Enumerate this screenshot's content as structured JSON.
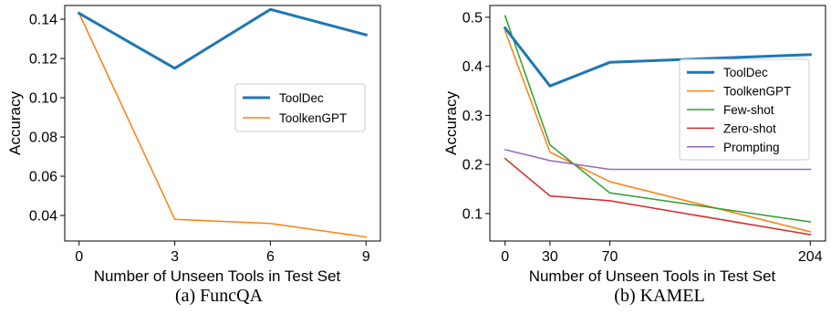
{
  "chart_data": [
    {
      "type": "line",
      "caption": "(a) FuncQA",
      "xlabel": "Number of Unseen Tools in Test Set",
      "ylabel": "Accuracy",
      "x": [
        0,
        3,
        6,
        9
      ],
      "xlim": [
        -0.45,
        9.45
      ],
      "ylim": [
        0.027,
        0.147
      ],
      "xticks": [
        0,
        3,
        6,
        9
      ],
      "yticks": [
        0.04,
        0.06,
        0.08,
        0.1,
        0.12,
        0.14
      ],
      "ytick_labels": [
        "0.04",
        "0.06",
        "0.08",
        "0.10",
        "0.12",
        "0.14"
      ],
      "grid": false,
      "legend_position": "center-right",
      "series": [
        {
          "name": "ToolDec",
          "color": "#1f77b4",
          "width": 3,
          "values": [
            0.143,
            0.115,
            0.145,
            0.132
          ]
        },
        {
          "name": "ToolkenGPT",
          "color": "#ff7f0e",
          "width": 1.5,
          "values": [
            0.143,
            0.038,
            0.036,
            0.029
          ]
        }
      ]
    },
    {
      "type": "line",
      "caption": "(b) KAMEL",
      "xlabel": "Number of Unseen Tools in Test Set",
      "ylabel": "Accuracy",
      "x": [
        0,
        30,
        70,
        204
      ],
      "xlim": [
        -10.2,
        214.2
      ],
      "ylim": [
        0.044,
        0.524
      ],
      "xticks": [
        0,
        30,
        70,
        204
      ],
      "yticks": [
        0.1,
        0.2,
        0.3,
        0.4,
        0.5
      ],
      "ytick_labels": [
        "0.1",
        "0.2",
        "0.3",
        "0.4",
        "0.5"
      ],
      "grid": false,
      "legend_position": "center-right",
      "series": [
        {
          "name": "ToolDec",
          "color": "#1f77b4",
          "width": 3,
          "values": [
            0.478,
            0.36,
            0.408,
            0.424
          ]
        },
        {
          "name": "ToolkenGPT",
          "color": "#ff7f0e",
          "width": 1.5,
          "values": [
            0.472,
            0.225,
            0.165,
            0.063
          ]
        },
        {
          "name": "Few-shot",
          "color": "#2ca02c",
          "width": 1.5,
          "values": [
            0.503,
            0.24,
            0.142,
            0.083
          ]
        },
        {
          "name": "Zero-shot",
          "color": "#d62728",
          "width": 1.5,
          "values": [
            0.212,
            0.136,
            0.126,
            0.057
          ]
        },
        {
          "name": "Prompting",
          "color": "#9467bd",
          "width": 1.5,
          "values": [
            0.23,
            0.208,
            0.19,
            0.19
          ]
        }
      ]
    }
  ]
}
